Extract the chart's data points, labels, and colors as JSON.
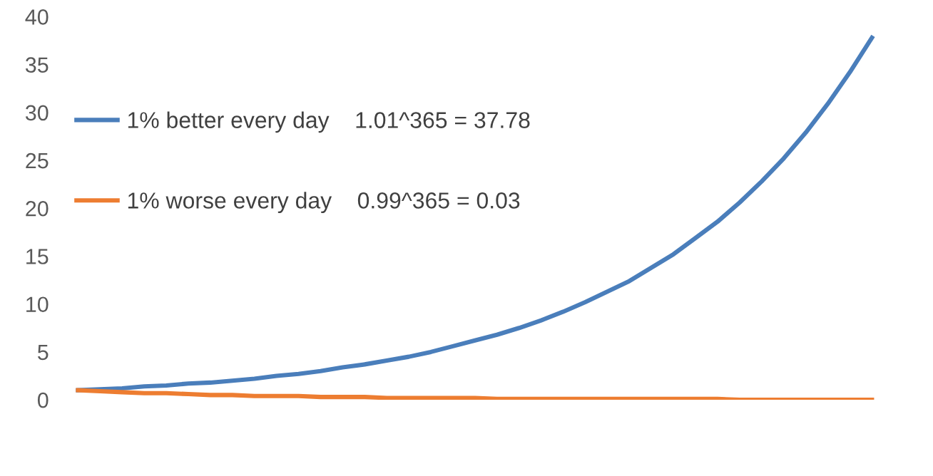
{
  "chart_data": {
    "type": "line",
    "categories": [
      null,
      null,
      null,
      null,
      null,
      null,
      null,
      null,
      null,
      null,
      null,
      null,
      null,
      null,
      null,
      null,
      null,
      null,
      null,
      null,
      null,
      null,
      null,
      null,
      null,
      null,
      null,
      null,
      null,
      null,
      null,
      null,
      null,
      null,
      null,
      null,
      null
    ],
    "series": [
      {
        "name": "1% better every day    1.01^365 = 37.78",
        "color": "#4a7ebb",
        "values": [
          1.0,
          1.1,
          1.2,
          1.4,
          1.5,
          1.7,
          1.8,
          2.0,
          2.2,
          2.5,
          2.7,
          3.0,
          3.4,
          3.7,
          4.1,
          4.5,
          5.0,
          5.6,
          6.2,
          6.8,
          7.5,
          8.3,
          9.2,
          10.2,
          11.3,
          12.4,
          13.8,
          15.2,
          16.9,
          18.6,
          20.6,
          22.8,
          25.2,
          27.9,
          30.9,
          34.2,
          37.8
        ]
      },
      {
        "name": "1% worse every day    0.99^365 = 0.03",
        "color": "#ed7d31",
        "values": [
          1.0,
          0.9,
          0.8,
          0.7,
          0.7,
          0.6,
          0.5,
          0.5,
          0.4,
          0.4,
          0.4,
          0.3,
          0.3,
          0.3,
          0.2,
          0.2,
          0.2,
          0.2,
          0.2,
          0.1,
          0.1,
          0.1,
          0.1,
          0.1,
          0.1,
          0.1,
          0.1,
          0.1,
          0.1,
          0.1,
          0.0,
          0.0,
          0.0,
          0.0,
          0.0,
          0.0,
          0.0
        ]
      }
    ],
    "ylim": [
      0,
      40
    ],
    "yticks": [
      0,
      5,
      10,
      15,
      20,
      25,
      30,
      35,
      40
    ],
    "grid": false,
    "legend": "left",
    "tick_labels": "y",
    "marker": "none",
    "line_style": "solid"
  }
}
